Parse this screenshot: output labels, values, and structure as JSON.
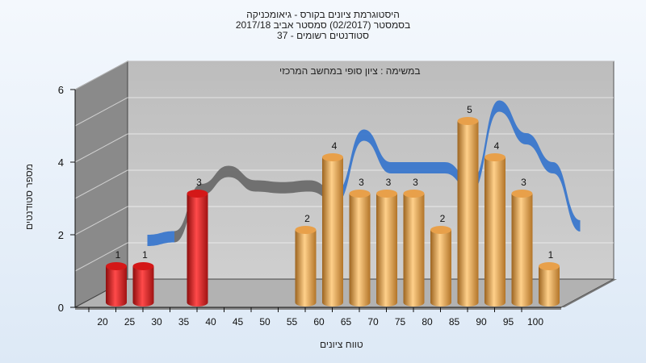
{
  "header": {
    "title_line1": "היסטוגרמת ציונים בקורס - גיאומכניקה",
    "title_line2": "בסמסטר  (02/2017)  סמסטר אביב 2017/18",
    "title_line3": "סטודנטים רשומים - 37"
  },
  "chart_data": {
    "type": "bar",
    "subtitle": "במשימה : ציון סופי במחשב המרכזי",
    "xlabel": "טווח ציונים",
    "ylabel": "מספר סטודנטים",
    "x_ticks": [
      "20",
      "25",
      "30",
      "35",
      "40",
      "45",
      "50",
      "55",
      "60",
      "65",
      "70",
      "75",
      "80",
      "85",
      "90",
      "95",
      "100"
    ],
    "y_ticks": [
      "0",
      "2",
      "4",
      "6"
    ],
    "ylim": [
      0,
      6
    ],
    "bars": [
      {
        "x": 20,
        "value": 1,
        "label": "1",
        "color": "#e31e1e"
      },
      {
        "x": 25,
        "value": 1,
        "label": "1",
        "color": "#e31e1e"
      },
      {
        "x": 35,
        "value": 3,
        "label": "3",
        "color": "#e31e1e"
      },
      {
        "x": 55,
        "value": 2,
        "label": "2",
        "color": "#eea548"
      },
      {
        "x": 60,
        "value": 4,
        "label": "4",
        "color": "#eea548"
      },
      {
        "x": 65,
        "value": 3,
        "label": "3",
        "color": "#eea548"
      },
      {
        "x": 70,
        "value": 3,
        "label": "3",
        "color": "#eea548"
      },
      {
        "x": 75,
        "value": 3,
        "label": "3",
        "color": "#eea548"
      },
      {
        "x": 80,
        "value": 2,
        "label": "2",
        "color": "#eea548"
      },
      {
        "x": 85,
        "value": 5,
        "label": "5",
        "color": "#eea548"
      },
      {
        "x": 90,
        "value": 4,
        "label": "4",
        "color": "#eea548"
      },
      {
        "x": 95,
        "value": 3,
        "label": "3",
        "color": "#eea548"
      },
      {
        "x": 100,
        "value": 1,
        "label": "1",
        "color": "#eea548"
      }
    ],
    "curve": {
      "points": [
        {
          "x": 25,
          "y": 1.4
        },
        {
          "x": 30,
          "y": 1.5
        },
        {
          "x": 35,
          "y": 2.8
        },
        {
          "x": 40,
          "y": 3.3
        },
        {
          "x": 45,
          "y": 2.9
        },
        {
          "x": 50,
          "y": 2.85
        },
        {
          "x": 55,
          "y": 2.9
        },
        {
          "x": 60,
          "y": 2.6
        },
        {
          "x": 65,
          "y": 4.3
        },
        {
          "x": 70,
          "y": 3.4
        },
        {
          "x": 75,
          "y": 3.4
        },
        {
          "x": 80,
          "y": 3.4
        },
        {
          "x": 85,
          "y": 2.9
        },
        {
          "x": 90,
          "y": 5.1
        },
        {
          "x": 95,
          "y": 4.2
        },
        {
          "x": 100,
          "y": 3.4
        },
        {
          "x": 105,
          "y": 1.8
        }
      ],
      "gray_color": "#6b6b6b",
      "blue_color": "#3a77cc",
      "gray_until_x": 60
    },
    "colors": {
      "back_wall": "#c4c4c4",
      "side_wall": "#8a8a8a",
      "floor": "#b2b2b2",
      "grid": "#ffffff"
    }
  }
}
